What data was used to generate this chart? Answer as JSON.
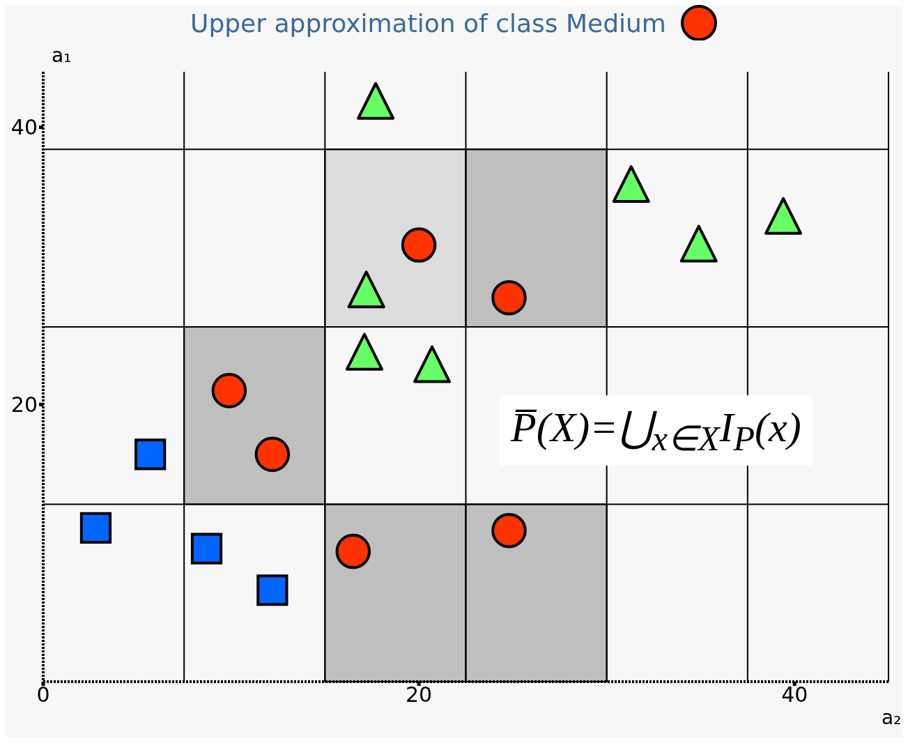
{
  "chart_data": {
    "type": "scatter",
    "title": "Upper approximation of class Medium",
    "xlabel": "a₂",
    "ylabel": "a₁",
    "xlim": [
      0,
      45
    ],
    "ylim": [
      0,
      44
    ],
    "xticks": [
      0,
      20,
      40
    ],
    "yticks": [
      20,
      40
    ],
    "series": [
      {
        "type": "bar",
        "color": "#dcdcdc",
        "x": [
          18.75
        ],
        "base": [
          25.6
        ],
        "values": [
          12.8
        ]
      },
      {
        "type": "bar",
        "color": "#bfbfbf",
        "x": [
          11.25,
          18.75,
          26.25
        ],
        "base": [
          12.8,
          0,
          0
        ],
        "values": [
          12.8,
          12.8,
          12.8
        ]
      },
      {
        "type": "bar",
        "color": "#bfbfbf",
        "x": [
          26.25
        ],
        "base": [
          25.6
        ],
        "values": [
          12.8
        ]
      },
      {
        "marker": "circle",
        "color": "#ff3300",
        "x": [
          20.0,
          24.8,
          9.9,
          12.2,
          16.5,
          24.8
        ],
        "values": [
          31.5,
          27.7,
          21.0,
          16.4,
          9.4,
          10.9
        ]
      },
      {
        "marker": "triangle",
        "color": "#66ff66",
        "x": [
          17.7,
          31.3,
          34.9,
          39.4,
          17.2,
          17.1,
          20.7
        ],
        "values": [
          41.9,
          35.9,
          31.6,
          33.6,
          28.3,
          23.8,
          22.9
        ]
      },
      {
        "marker": "square",
        "color": "#0066ff",
        "x": [
          5.7,
          2.8,
          8.7,
          12.2
        ],
        "values": [
          16.4,
          11.1,
          9.6,
          6.6
        ]
      }
    ],
    "ref_lines": [
      {
        "axis": "x",
        "value": 7.5,
        "color": "#000000"
      },
      {
        "axis": "x",
        "value": 15,
        "color": "#000000"
      },
      {
        "axis": "x",
        "value": 22.5,
        "color": "#000000"
      },
      {
        "axis": "x",
        "value": 30,
        "color": "#000000"
      },
      {
        "axis": "x",
        "value": 37.5,
        "color": "#000000"
      },
      {
        "axis": "x",
        "value": 45,
        "color": "#000000"
      },
      {
        "axis": "y",
        "value": 12.8,
        "color": "#000000"
      },
      {
        "axis": "y",
        "value": 25.6,
        "color": "#000000"
      },
      {
        "axis": "y",
        "value": 38.4,
        "color": "#000000"
      }
    ],
    "annotations": [
      "P̅(X)=⋃$_{x∈X}$I$_{P}$(x)"
    ]
  }
}
